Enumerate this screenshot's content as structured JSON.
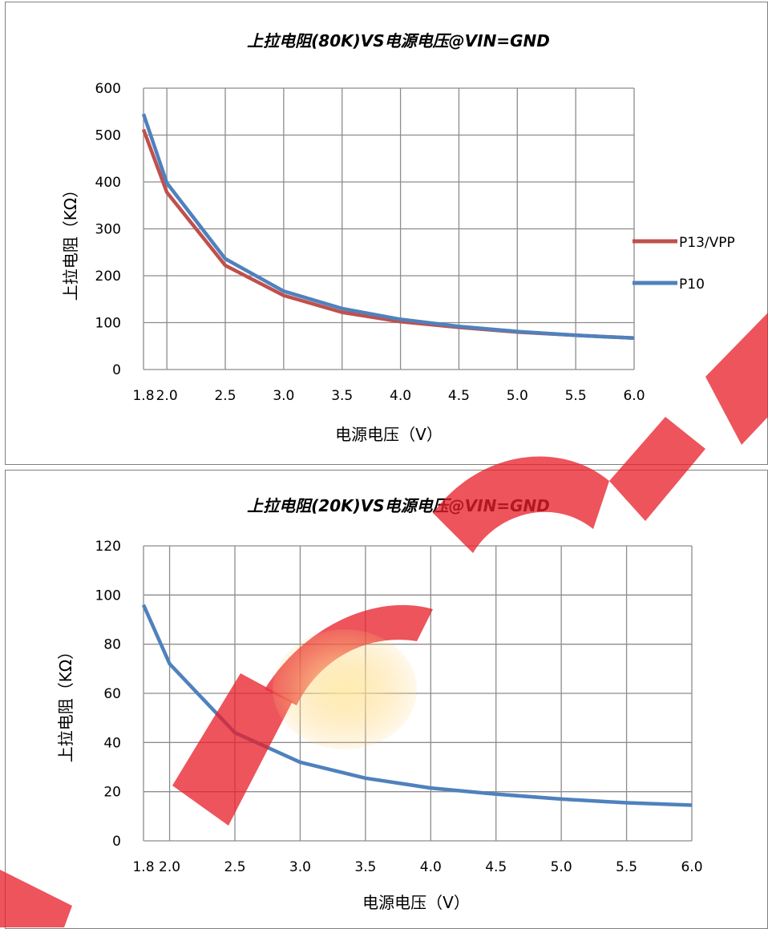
{
  "chart_data": [
    {
      "type": "line",
      "title": "上拉电阻(80K)VS电源电压@VIN=GND",
      "xlabel": "电源电压（V）",
      "ylabel": "上拉电阻（KΩ）",
      "x": [
        1.8,
        2.0,
        2.5,
        3.0,
        3.5,
        4.0,
        4.5,
        5.0,
        5.5,
        6.0
      ],
      "x_tick_labels": [
        "1.8",
        "2.0",
        "2.5",
        "3.0",
        "3.5",
        "4.0",
        "4.5",
        "5.0",
        "5.5",
        "6.0"
      ],
      "y_tick_labels": [
        "0",
        "100",
        "200",
        "300",
        "400",
        "500",
        "600"
      ],
      "ylim": [
        0,
        600
      ],
      "grid": true,
      "legend_position": "right",
      "series": [
        {
          "name": "P13/VPP",
          "color": "#c0504d",
          "values": [
            512,
            378,
            222,
            158,
            122,
            102,
            90,
            80,
            73,
            67
          ]
        },
        {
          "name": "P10",
          "color": "#4f81bd",
          "values": [
            545,
            398,
            236,
            167,
            130,
            107,
            92,
            81,
            73,
            67
          ]
        }
      ]
    },
    {
      "type": "line",
      "title": "上拉电阻(20K)VS电源电压@VIN=GND",
      "xlabel": "电源电压（V）",
      "ylabel": "上拉电阻（KΩ）",
      "x": [
        1.8,
        2.0,
        2.5,
        3.0,
        3.5,
        4.0,
        4.5,
        5.0,
        5.5,
        6.0
      ],
      "x_tick_labels": [
        "1.8",
        "2.0",
        "2.5",
        "3.0",
        "3.5",
        "4.0",
        "4.5",
        "5.0",
        "5.5",
        "6.0"
      ],
      "y_tick_labels": [
        "0",
        "20",
        "40",
        "60",
        "80",
        "100",
        "120"
      ],
      "ylim": [
        0,
        120
      ],
      "grid": true,
      "legend_position": "none",
      "series": [
        {
          "color": "#4f81bd",
          "values": [
            96,
            72,
            44,
            32,
            25.5,
            21.5,
            19,
            17,
            15.5,
            14.5
          ]
        }
      ]
    }
  ]
}
